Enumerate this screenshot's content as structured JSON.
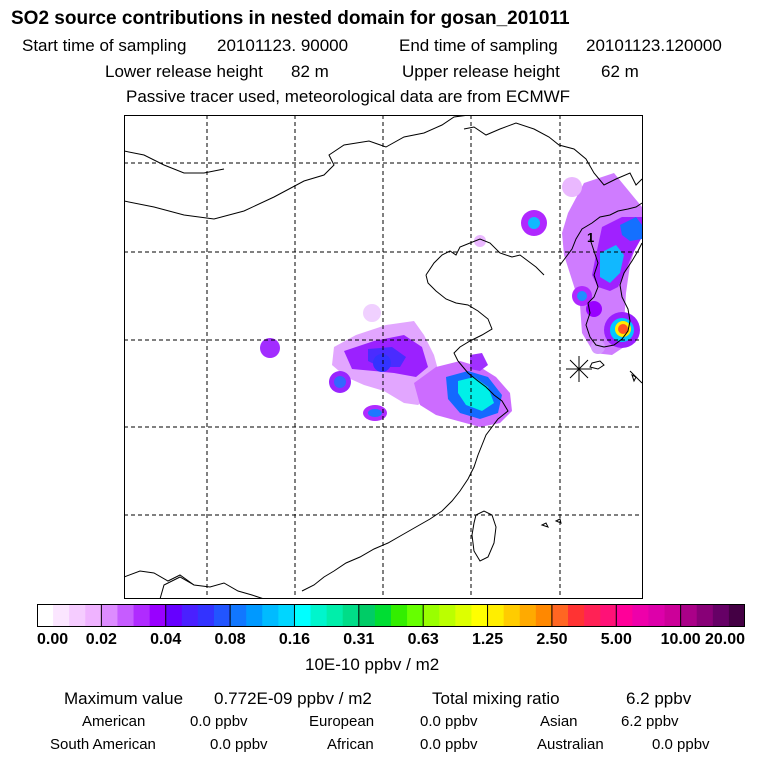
{
  "header": {
    "title": "SO2 source contributions in nested domain for gosan_201011",
    "start_label": "Start time of sampling",
    "start_value": "20101123. 90000",
    "end_label": "End time of sampling",
    "end_value": "20101123.120000",
    "lower_label": "Lower release height",
    "lower_value": "82 m",
    "upper_label": "Upper release height",
    "upper_value": "62 m",
    "note": "Passive tracer used, meteorological data are from ECMWF"
  },
  "map": {
    "station_marker_label": "1",
    "layers": [
      "coastlines",
      "borders",
      "graticule",
      "so2-plume",
      "release-site-marker"
    ]
  },
  "legend": {
    "ticks": [
      "0.00",
      "0.02",
      "0.04",
      "0.08",
      "0.16",
      "0.31",
      "0.63",
      "1.25",
      "2.50",
      "5.00",
      "10.00",
      "20.00"
    ],
    "colors": [
      "#ffffff",
      "#fbe6ff",
      "#f5ccff",
      "#efb3ff",
      "#dd8cff",
      "#c65cff",
      "#b02bff",
      "#9900ff",
      "#6600ff",
      "#4a20ff",
      "#3333ff",
      "#2255ff",
      "#1177ff",
      "#0099ff",
      "#00bbff",
      "#00d6ff",
      "#00ffff",
      "#00f5cc",
      "#00eeaa",
      "#00dd88",
      "#00cc66",
      "#00dd33",
      "#33ee00",
      "#66ff00",
      "#99ff00",
      "#bbff00",
      "#ddff00",
      "#ffff00",
      "#ffee00",
      "#ffcc00",
      "#ffaa00",
      "#ff8800",
      "#ff6622",
      "#ff3333",
      "#ff2255",
      "#ff1177",
      "#ff0099",
      "#ee00aa",
      "#dd00aa",
      "#cc0099",
      "#aa0088",
      "#880077",
      "#660066",
      "#440044"
    ],
    "unit": "10E-10 ppbv / m2"
  },
  "stats": {
    "max_label": "Maximum value",
    "max_value": "0.772E-09 ppbv / m2",
    "total_label": "Total mixing ratio",
    "total_value": "6.2 ppbv",
    "regions": [
      {
        "name": "American",
        "value": "0.0 ppbv"
      },
      {
        "name": "European",
        "value": "0.0 ppbv"
      },
      {
        "name": "Asian",
        "value": "6.2 ppbv"
      },
      {
        "name": "South American",
        "value": "0.0 ppbv"
      },
      {
        "name": "African",
        "value": "0.0 ppbv"
      },
      {
        "name": "Australian",
        "value": "0.0 ppbv"
      }
    ]
  }
}
